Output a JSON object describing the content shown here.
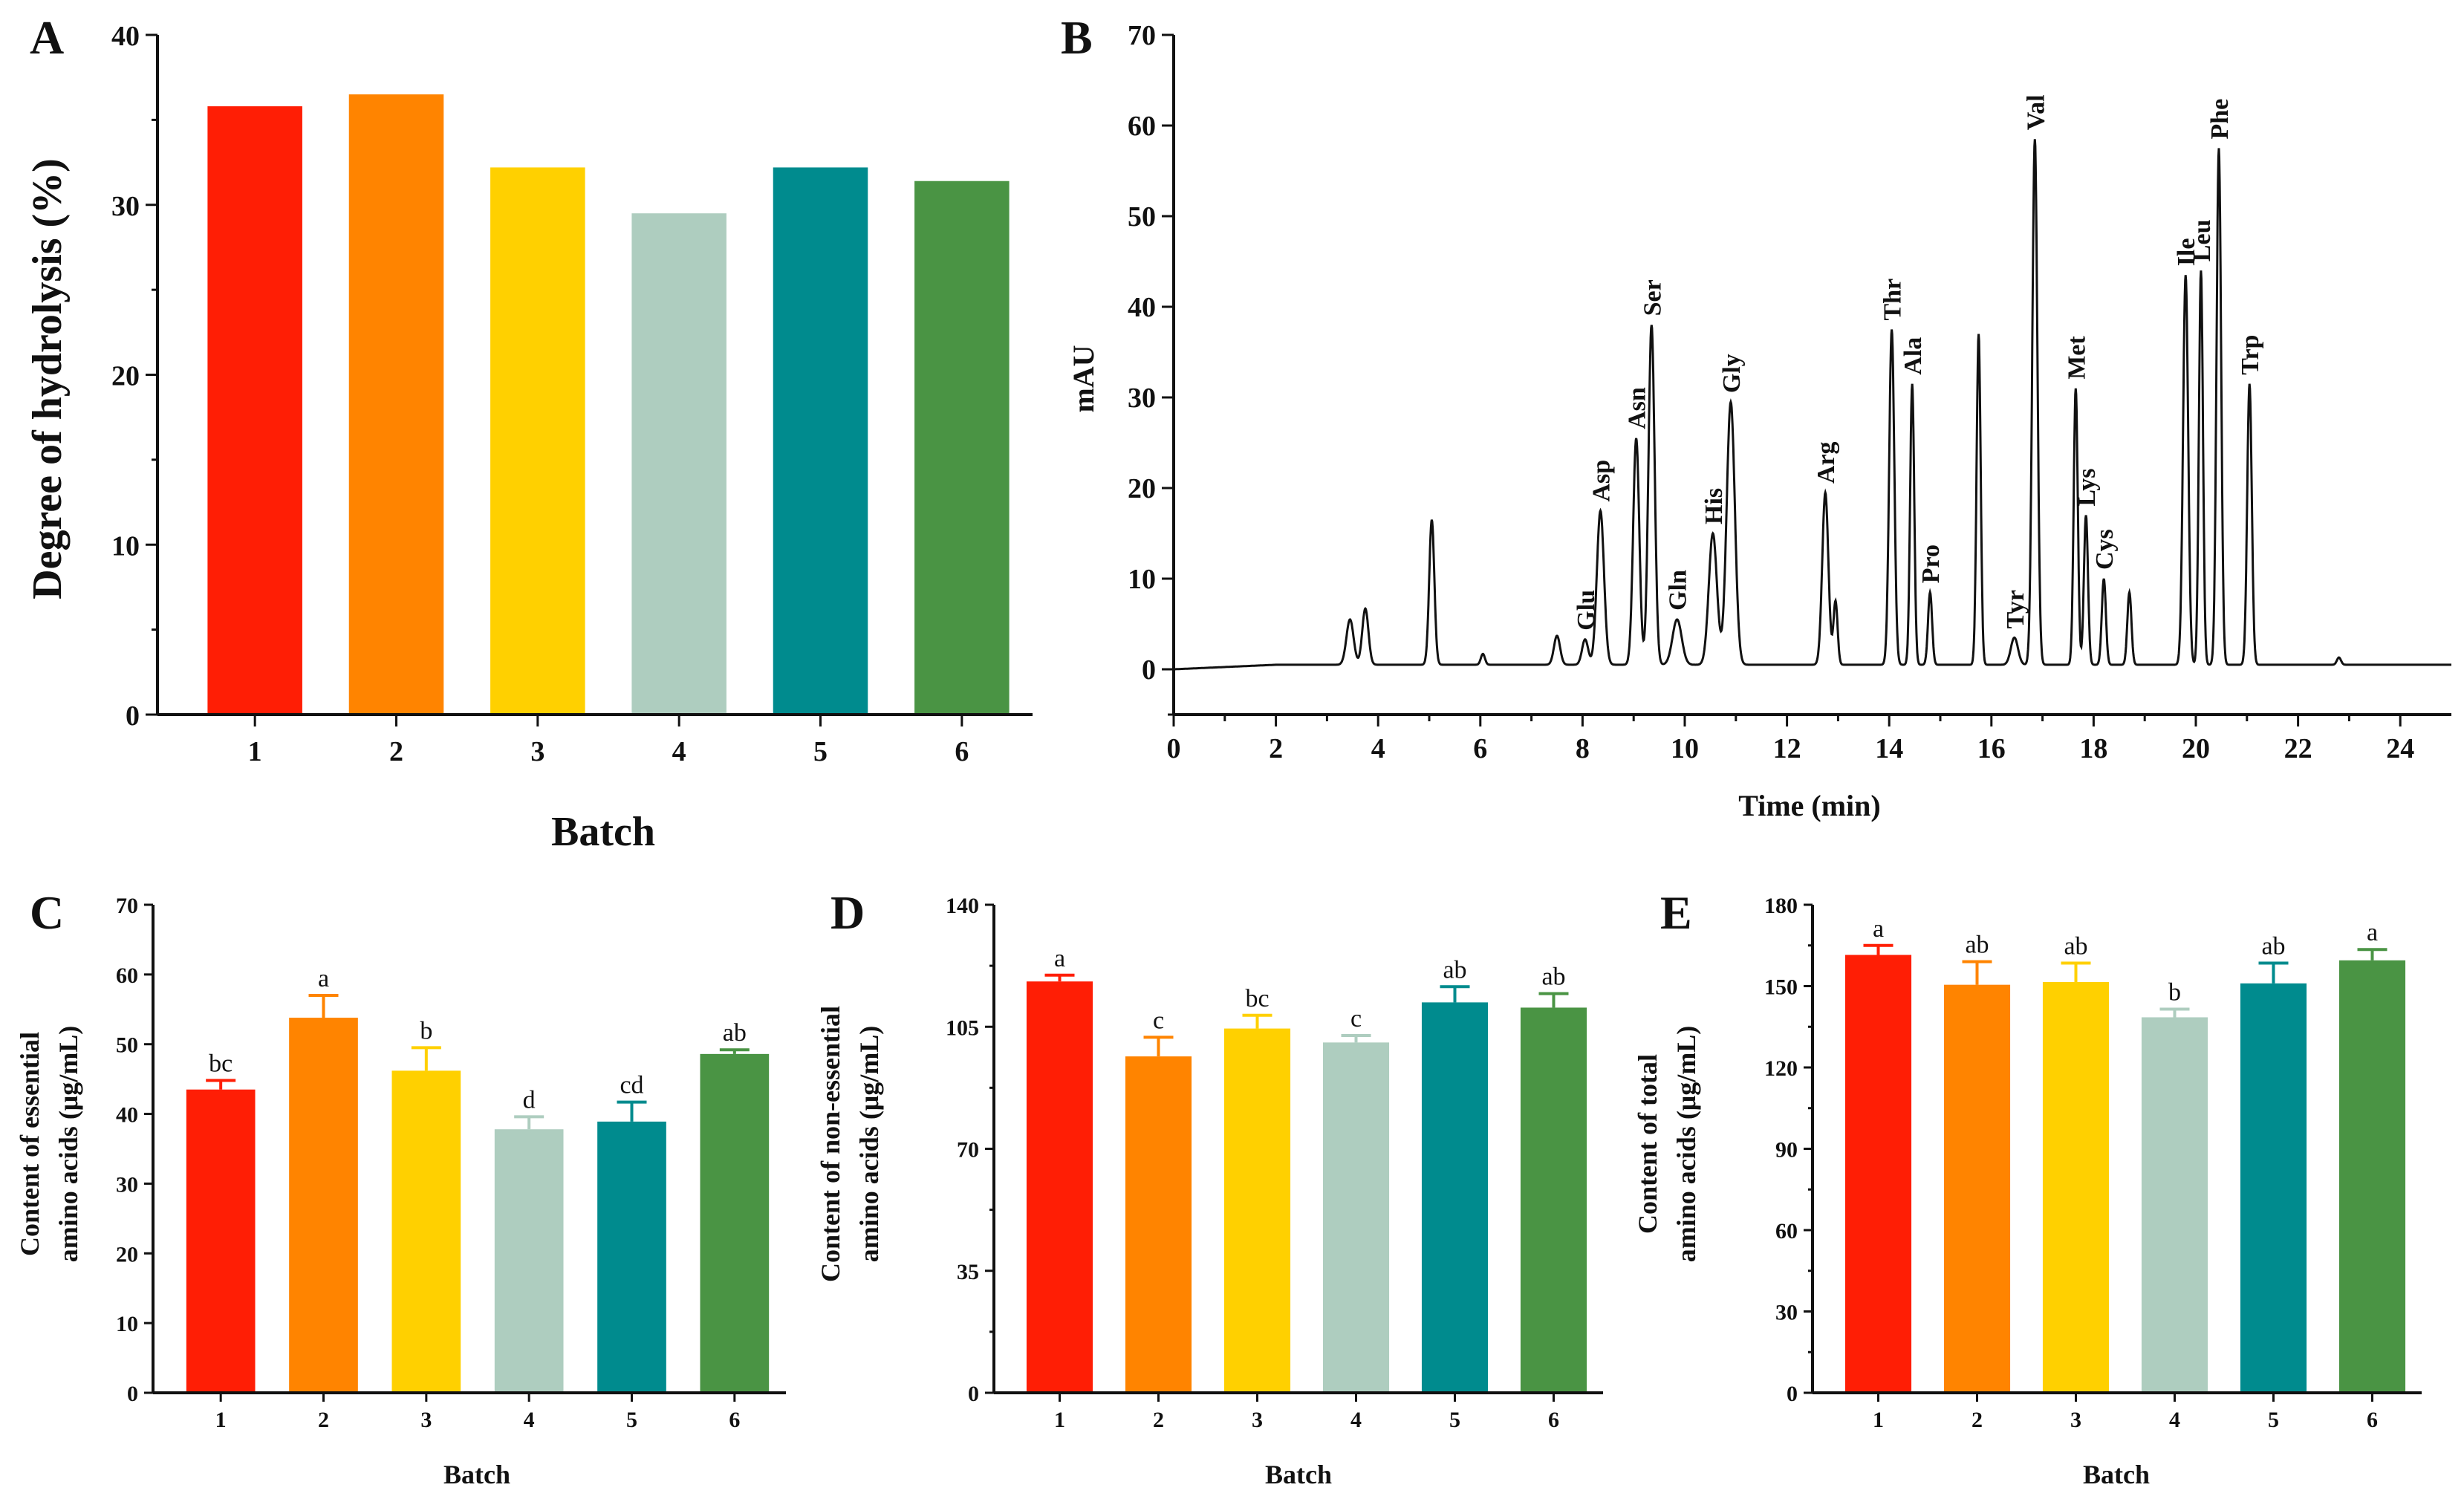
{
  "colors": {
    "batch": [
      "#FF1E05",
      "#FF8400",
      "#FFD000",
      "#AECDBF",
      "#008B8E",
      "#4A9444"
    ],
    "axis": "#111111",
    "trace": "#111111"
  },
  "panels": [
    {
      "id": "A",
      "letter": "A",
      "chart_data": {
        "type": "bar",
        "title": "",
        "xlabel": "Batch",
        "ylabel": "Degree of hydrolysis (%)",
        "categories": [
          "1",
          "2",
          "3",
          "4",
          "5",
          "6"
        ],
        "values": [
          35.8,
          36.5,
          32.2,
          29.5,
          32.2,
          31.4
        ],
        "ylim": [
          0,
          40
        ],
        "yticks": [
          0,
          10,
          20,
          30,
          40
        ]
      }
    },
    {
      "id": "B",
      "letter": "B",
      "chart_data": {
        "type": "line",
        "title": "",
        "xlabel": "Time (min)",
        "ylabel": "mAU",
        "xlim": [
          0,
          25
        ],
        "ylim": [
          -5,
          70
        ],
        "xticks": [
          0,
          2,
          4,
          6,
          8,
          10,
          12,
          14,
          16,
          18,
          20,
          22,
          24
        ],
        "yticks": [
          0,
          10,
          20,
          30,
          40,
          50,
          60,
          70
        ],
        "baseline": 0.5,
        "peaks": [
          {
            "t": 3.45,
            "h": 5.0,
            "w": 0.07
          },
          {
            "t": 3.75,
            "h": 6.2,
            "w": 0.06
          },
          {
            "t": 5.05,
            "h": 16.0,
            "w": 0.05
          },
          {
            "t": 6.05,
            "h": 1.2,
            "w": 0.04
          },
          {
            "t": 7.5,
            "h": 3.2,
            "w": 0.06
          },
          {
            "t": 8.05,
            "h": 2.8,
            "w": 0.06,
            "label": "Glu"
          },
          {
            "t": 8.35,
            "h": 17.0,
            "w": 0.07,
            "label": "Asp"
          },
          {
            "t": 9.05,
            "h": 25.0,
            "w": 0.06,
            "label": "Asn"
          },
          {
            "t": 9.35,
            "h": 37.5,
            "w": 0.06,
            "label": "Ser"
          },
          {
            "t": 9.85,
            "h": 5.0,
            "w": 0.09,
            "label": "Gln"
          },
          {
            "t": 10.55,
            "h": 14.5,
            "w": 0.08,
            "label": "His"
          },
          {
            "t": 10.9,
            "h": 29.0,
            "w": 0.08,
            "label": "Gly"
          },
          {
            "t": 12.75,
            "h": 19.0,
            "w": 0.06,
            "label": "Arg"
          },
          {
            "t": 12.95,
            "h": 7.0,
            "w": 0.04
          },
          {
            "t": 14.05,
            "h": 37.0,
            "w": 0.05,
            "label": "Thr"
          },
          {
            "t": 14.45,
            "h": 31.0,
            "w": 0.04,
            "label": "Ala"
          },
          {
            "t": 14.8,
            "h": 8.0,
            "w": 0.04,
            "label": "Pro"
          },
          {
            "t": 15.75,
            "h": 36.5,
            "w": 0.04
          },
          {
            "t": 16.45,
            "h": 3.0,
            "w": 0.07,
            "label": "Tyr"
          },
          {
            "t": 16.85,
            "h": 58.0,
            "w": 0.05,
            "label": "Val"
          },
          {
            "t": 17.65,
            "h": 30.5,
            "w": 0.04,
            "label": "Met"
          },
          {
            "t": 17.85,
            "h": 16.5,
            "w": 0.04,
            "label": "Lys"
          },
          {
            "t": 18.2,
            "h": 9.5,
            "w": 0.04,
            "label": "Cys"
          },
          {
            "t": 18.7,
            "h": 8.0,
            "w": 0.04
          },
          {
            "t": 19.8,
            "h": 43.0,
            "w": 0.05,
            "label": "Ile"
          },
          {
            "t": 20.1,
            "h": 43.5,
            "w": 0.04,
            "label": "Leu"
          },
          {
            "t": 20.45,
            "h": 57.0,
            "w": 0.045,
            "label": "Phe"
          },
          {
            "t": 21.05,
            "h": 31.0,
            "w": 0.045,
            "label": "Trp"
          },
          {
            "t": 22.8,
            "h": 0.8,
            "w": 0.04
          }
        ]
      }
    },
    {
      "id": "C",
      "letter": "C",
      "chart_data": {
        "type": "bar",
        "title": "",
        "xlabel": "Batch",
        "ylabel_lines": [
          "Content of essential",
          "amino acids (μg/mL)"
        ],
        "categories": [
          "1",
          "2",
          "3",
          "4",
          "5",
          "6"
        ],
        "values": [
          43.5,
          53.8,
          46.2,
          37.8,
          38.9,
          48.6
        ],
        "errors": [
          1.3,
          3.2,
          3.3,
          1.8,
          2.8,
          0.6
        ],
        "significance": [
          "bc",
          "a",
          "b",
          "d",
          "cd",
          "ab"
        ],
        "ylim": [
          0,
          70
        ],
        "yticks": [
          0,
          10,
          20,
          30,
          40,
          50,
          60,
          70
        ]
      }
    },
    {
      "id": "D",
      "letter": "D",
      "chart_data": {
        "type": "bar",
        "title": "",
        "xlabel": "Batch",
        "ylabel_lines": [
          "Content of non-essential",
          "amino acids (μg/mL)"
        ],
        "categories": [
          "1",
          "2",
          "3",
          "4",
          "5",
          "6"
        ],
        "values": [
          118.0,
          96.5,
          104.5,
          100.5,
          112.0,
          110.5
        ],
        "errors": [
          1.8,
          5.5,
          3.8,
          2.0,
          4.5,
          4.0
        ],
        "significance": [
          "a",
          "c",
          "bc",
          "c",
          "ab",
          "ab"
        ],
        "ylim": [
          0,
          140
        ],
        "yticks": [
          0,
          35,
          70,
          105,
          140
        ]
      }
    },
    {
      "id": "E",
      "letter": "E",
      "chart_data": {
        "type": "bar",
        "title": "",
        "xlabel": "Batch",
        "ylabel_lines": [
          "Content of total",
          "amino acids (μg/mL)"
        ],
        "categories": [
          "1",
          "2",
          "3",
          "4",
          "5",
          "6"
        ],
        "values": [
          161.5,
          150.5,
          151.5,
          138.5,
          151.0,
          159.5
        ],
        "errors": [
          3.5,
          8.5,
          7.0,
          3.0,
          7.5,
          4.0
        ],
        "significance": [
          "a",
          "ab",
          "ab",
          "b",
          "ab",
          "a"
        ],
        "ylim": [
          0,
          180
        ],
        "yticks": [
          0,
          30,
          60,
          90,
          120,
          150,
          180
        ]
      }
    }
  ]
}
